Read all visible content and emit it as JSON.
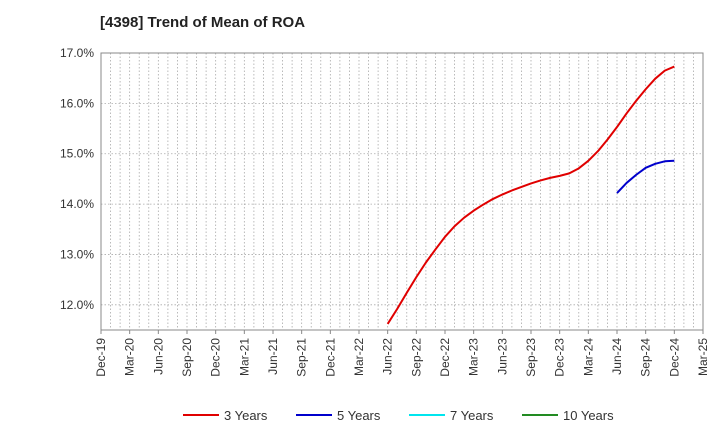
{
  "chart_data": {
    "type": "line",
    "title": "[4398]  Trend of Mean of ROA",
    "xlabel": "",
    "ylabel": "",
    "y_tick_labels": [
      "12.0%",
      "13.0%",
      "14.0%",
      "15.0%",
      "16.0%",
      "17.0%"
    ],
    "y_ticks": [
      12,
      13,
      14,
      15,
      16,
      17
    ],
    "ylim": [
      11.5,
      17.0
    ],
    "x_tick_labels": [
      "Dec-19",
      "Mar-20",
      "Jun-20",
      "Sep-20",
      "Dec-20",
      "Mar-21",
      "Jun-21",
      "Sep-21",
      "Dec-21",
      "Mar-22",
      "Jun-22",
      "Sep-22",
      "Dec-22",
      "Mar-23",
      "Jun-23",
      "Sep-23",
      "Dec-23",
      "Mar-24",
      "Jun-24",
      "Sep-24",
      "Dec-24",
      "Mar-25"
    ],
    "grid": true,
    "legend_position": "bottom",
    "series": [
      {
        "name": "3 Years",
        "color": "#e00000",
        "x": [
          "Jun-22",
          "Jul-22",
          "Aug-22",
          "Sep-22",
          "Oct-22",
          "Nov-22",
          "Dec-22",
          "Jan-23",
          "Feb-23",
          "Mar-23",
          "Apr-23",
          "May-23",
          "Jun-23",
          "Jul-23",
          "Aug-23",
          "Sep-23",
          "Oct-23",
          "Nov-23",
          "Dec-23",
          "Jan-24",
          "Feb-24",
          "Mar-24",
          "Apr-24",
          "May-24",
          "Jun-24",
          "Jul-24",
          "Aug-24",
          "Sep-24",
          "Oct-24",
          "Nov-24",
          "Dec-24"
        ],
        "values": [
          11.62,
          11.92,
          12.24,
          12.55,
          12.84,
          13.1,
          13.35,
          13.56,
          13.73,
          13.87,
          13.99,
          14.1,
          14.19,
          14.27,
          14.34,
          14.41,
          14.47,
          14.52,
          14.56,
          14.61,
          14.71,
          14.86,
          15.05,
          15.28,
          15.53,
          15.8,
          16.05,
          16.28,
          16.49,
          16.65,
          16.73
        ]
      },
      {
        "name": "5 Years",
        "color": "#0000cc",
        "x": [
          "Jun-24",
          "Jul-24",
          "Aug-24",
          "Sep-24",
          "Oct-24",
          "Nov-24",
          "Dec-24"
        ],
        "values": [
          14.22,
          14.42,
          14.58,
          14.72,
          14.8,
          14.85,
          14.86
        ]
      },
      {
        "name": "7 Years",
        "color": "#00e5ee",
        "x": [],
        "values": []
      },
      {
        "name": "10 Years",
        "color": "#228b22",
        "x": [],
        "values": []
      }
    ]
  }
}
